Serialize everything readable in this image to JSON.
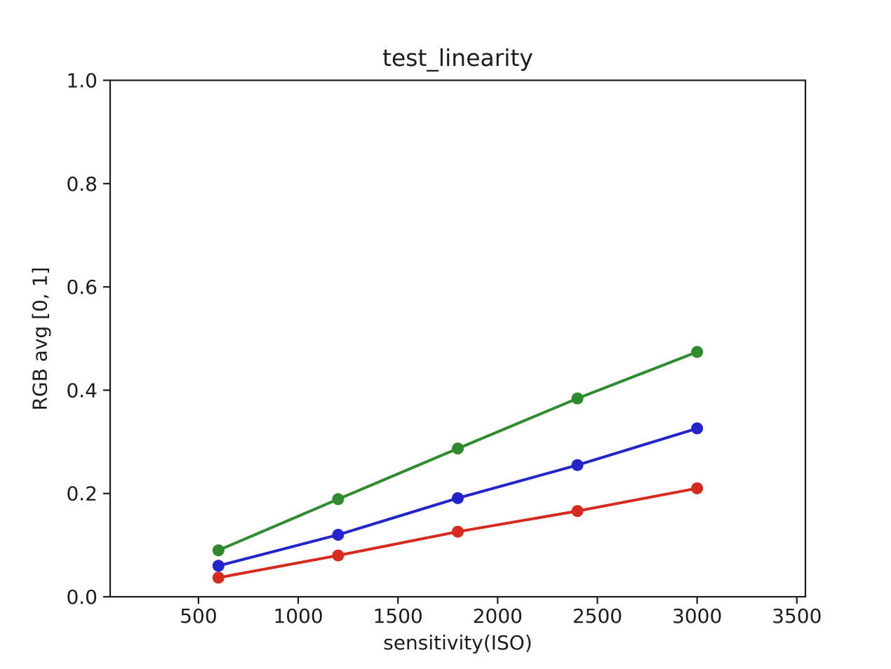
{
  "chart_data": {
    "type": "line",
    "title": "test_linearity",
    "xlabel": "sensitivity(ISO)",
    "ylabel": "RGB avg [0, 1]",
    "x": [
      600,
      1200,
      1800,
      2400,
      3000
    ],
    "series": [
      {
        "name": "red",
        "color": "#d62a1f",
        "values": [
          0.037,
          0.08,
          0.126,
          0.166,
          0.21
        ]
      },
      {
        "name": "green",
        "color": "#2e8b2e",
        "values": [
          0.09,
          0.189,
          0.287,
          0.384,
          0.474
        ]
      },
      {
        "name": "blue",
        "color": "#2424cd",
        "values": [
          0.06,
          0.12,
          0.191,
          0.255,
          0.326
        ]
      }
    ],
    "xlim": [
      57,
      3543
    ],
    "ylim": [
      0.0,
      1.0
    ],
    "xticks": [
      500,
      1000,
      1500,
      2000,
      2500,
      3000,
      3500
    ],
    "xtick_labels": [
      "500",
      "1000",
      "1500",
      "2000",
      "2500",
      "3000",
      "3500"
    ],
    "yticks": [
      0.0,
      0.2,
      0.4,
      0.6,
      0.8,
      1.0
    ],
    "ytick_labels": [
      "0.0",
      "0.2",
      "0.4",
      "0.6",
      "0.8",
      "1.0"
    ],
    "grid": false,
    "legend": "none",
    "marker": "circle",
    "axis_color": "#1c1c1c",
    "background": "#ffffff"
  }
}
